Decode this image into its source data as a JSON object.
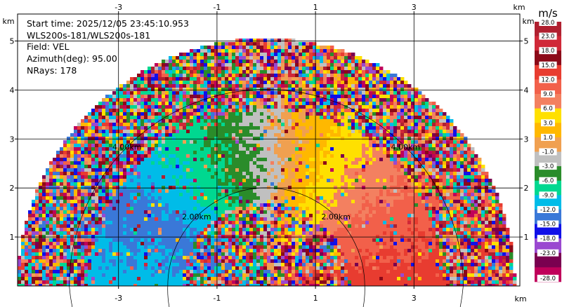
{
  "header": {
    "start_time": "Start time: 2025/12/05 23:45:10.953",
    "instrument": "WLS200s-181/WLS200s-181",
    "field": "Field: VEL",
    "azimuth": "Azimuth(deg): 95.00",
    "nrays": "NRays: 178"
  },
  "axes": {
    "x_unit": "km",
    "y_unit": "km",
    "x_ticks": [
      "-3",
      "-1",
      "1",
      "3"
    ],
    "x_tick_values": [
      -3,
      -1,
      1,
      3
    ],
    "y_ticks": [
      "1",
      "2",
      "3",
      "4",
      "5"
    ],
    "y_tick_values": [
      1,
      2,
      3,
      4,
      5
    ],
    "x_range": [
      -5.05,
      5.15
    ],
    "y_range": [
      0,
      5.55
    ],
    "grid": true
  },
  "rings": {
    "labels": [
      "2.00km",
      "4.00km"
    ],
    "radii_km": [
      2,
      4
    ]
  },
  "colorbar": {
    "unit": "m/s",
    "labels": [
      "28.0",
      "23.0",
      "18.0",
      "15.0",
      "12.0",
      "9.0",
      "6.0",
      "3.0",
      "1.0",
      "-1.0",
      "-3.0",
      "-6.0",
      "-9.0",
      "-12.0",
      "-15.0",
      "-18.0",
      "-23.0",
      "-28.0"
    ],
    "colors": [
      "#b02030",
      "#d02838",
      "#8c0a18",
      "#e83c30",
      "#f2604a",
      "#f38060",
      "#ffe000",
      "#ffb800",
      "#f0a050",
      "#c0c0c0",
      "#2a8c2a",
      "#00d890",
      "#00bce8",
      "#3a78d8",
      "#1010e8",
      "#9a48d0",
      "#7a0050",
      "#c0005a"
    ]
  },
  "chart_data": {
    "type": "heatmap",
    "field": "VEL",
    "unit": "m/s",
    "azimuth_deg": 95.0,
    "nrays": 178,
    "max_range_km": 5.05,
    "radial_velocity_by_direction": [
      {
        "direction": "left",
        "velocity": -9.0
      },
      {
        "direction": "left-upper",
        "velocity": -12.0
      },
      {
        "direction": "upper-left",
        "velocity": -6.0
      },
      {
        "direction": "overhead",
        "velocity": -1.0
      },
      {
        "direction": "upper-right",
        "velocity": 6.0
      },
      {
        "direction": "right-upper",
        "velocity": 12.0
      },
      {
        "direction": "right",
        "velocity": 15.0
      }
    ]
  }
}
